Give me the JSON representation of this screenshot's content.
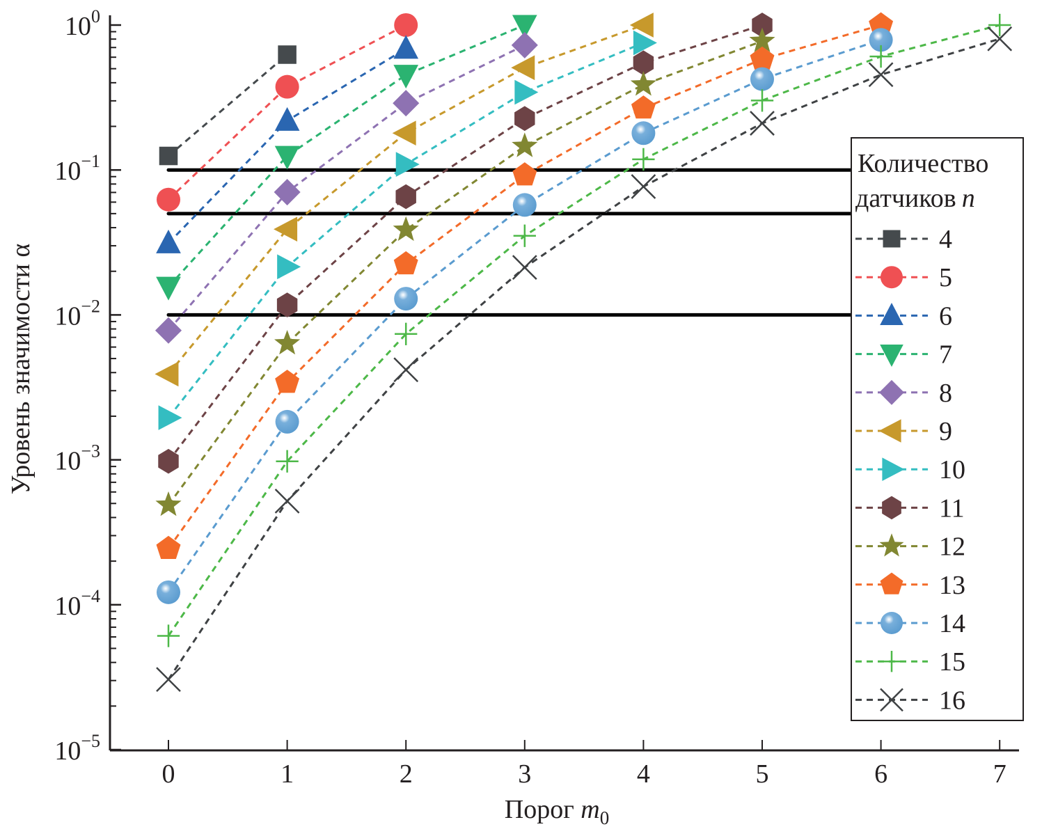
{
  "chart_data": {
    "type": "line",
    "title": "",
    "xlabel": "Порог m",
    "xlabel_sub": "0",
    "ylabel": "Уровень значимости α",
    "yscale": "log",
    "ylim": [
      1e-05,
      1
    ],
    "xlim": [
      -0.4,
      7.15
    ],
    "xticks": [
      0,
      1,
      2,
      3,
      4,
      5,
      6,
      7
    ],
    "xtick_labels": [
      "0",
      "1",
      "2",
      "3",
      "4",
      "5",
      "6",
      "7"
    ],
    "yticks": [
      1,
      0.1,
      0.01,
      0.001,
      0.0001,
      1e-05
    ],
    "ytick_labels": [
      {
        "base": "10",
        "exp": "0"
      },
      {
        "base": "10",
        "exp": "−1"
      },
      {
        "base": "10",
        "exp": "−2"
      },
      {
        "base": "10",
        "exp": "−3"
      },
      {
        "base": "10",
        "exp": "−4"
      },
      {
        "base": "10",
        "exp": "−5"
      }
    ],
    "grid": false,
    "reference_lines": [
      {
        "y": 0.1,
        "x_from": 0,
        "color": "#000000"
      },
      {
        "y": 0.05,
        "x_from": 0,
        "color": "#000000"
      },
      {
        "y": 0.01,
        "x_from": 0,
        "color": "#000000"
      }
    ],
    "legend": {
      "title_line1": "Количество",
      "title_line2": "датчиков",
      "title_var": "n",
      "placement": "right"
    },
    "series": [
      {
        "name": "4",
        "marker": "square",
        "color": "#454a4d",
        "x": [
          0,
          1
        ],
        "values": [
          0.125,
          0.625
        ]
      },
      {
        "name": "5",
        "marker": "circle",
        "color": "#ef5053",
        "x": [
          0,
          1,
          2
        ],
        "values": [
          0.0625,
          0.375,
          1.0
        ]
      },
      {
        "name": "6",
        "marker": "triangle-up",
        "color": "#2a66b1",
        "x": [
          0,
          1,
          2
        ],
        "values": [
          0.03125,
          0.21875,
          0.6875
        ]
      },
      {
        "name": "7",
        "marker": "triangle-down",
        "color": "#2bb371",
        "x": [
          0,
          1,
          2,
          3
        ],
        "values": [
          0.015625,
          0.125,
          0.453125,
          1.0
        ]
      },
      {
        "name": "8",
        "marker": "diamond",
        "color": "#8e72b2",
        "x": [
          0,
          1,
          2,
          3
        ],
        "values": [
          0.0078125,
          0.0703125,
          0.2890625,
          0.7265625
        ]
      },
      {
        "name": "9",
        "marker": "triangle-left",
        "color": "#c7992c",
        "x": [
          0,
          1,
          2,
          3,
          4
        ],
        "values": [
          0.00390625,
          0.0390625,
          0.1796875,
          0.5078125,
          1.0
        ]
      },
      {
        "name": "10",
        "marker": "triangle-right",
        "color": "#34bdc1",
        "x": [
          0,
          1,
          2,
          3,
          4
        ],
        "values": [
          0.001953,
          0.021484,
          0.109375,
          0.34375,
          0.753906
        ]
      },
      {
        "name": "11",
        "marker": "hexagon",
        "color": "#6d4346",
        "x": [
          0,
          1,
          2,
          3,
          4,
          5
        ],
        "values": [
          0.000977,
          0.011719,
          0.06543,
          0.226563,
          0.548828,
          1.0
        ]
      },
      {
        "name": "12",
        "marker": "star",
        "color": "#818732",
        "x": [
          0,
          1,
          2,
          3,
          4,
          5
        ],
        "values": [
          0.000488,
          0.006348,
          0.038574,
          0.145996,
          0.387695,
          0.774414
        ]
      },
      {
        "name": "13",
        "marker": "pentagon",
        "color": "#f36b29",
        "x": [
          0,
          1,
          2,
          3,
          4,
          5,
          6
        ],
        "values": [
          0.000244,
          0.003418,
          0.022461,
          0.092285,
          0.266846,
          0.581055,
          1.0
        ]
      },
      {
        "name": "14",
        "marker": "sphere",
        "color": "#5a9bcf",
        "x": [
          0,
          1,
          2,
          3,
          4,
          5,
          6
        ],
        "values": [
          0.000122,
          0.001831,
          0.012939,
          0.057373,
          0.179565,
          0.42395,
          0.790527
        ]
      },
      {
        "name": "15",
        "marker": "plus",
        "color": "#4db848",
        "x": [
          0,
          1,
          2,
          3,
          4,
          5,
          6,
          7
        ],
        "values": [
          6.1e-05,
          0.000977,
          0.007385,
          0.035156,
          0.118469,
          0.301758,
          0.607239,
          1.0
        ]
      },
      {
        "name": "16",
        "marker": "x",
        "color": "#3f4244",
        "x": [
          0,
          1,
          2,
          3,
          4,
          5,
          6,
          7
        ],
        "values": [
          3.05e-05,
          0.000519,
          0.004181,
          0.021271,
          0.076813,
          0.210114,
          0.454498,
          0.803619
        ]
      }
    ]
  }
}
